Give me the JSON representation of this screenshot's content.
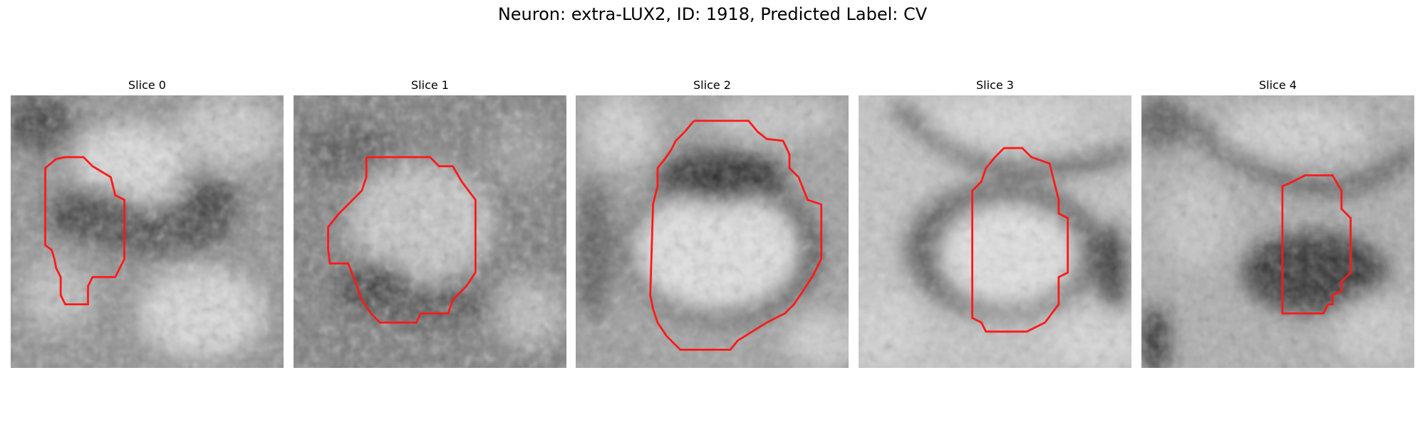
{
  "figure": {
    "title": "Neuron: extra-LUX2, ID: 1918, Predicted Label: CV"
  },
  "outline_color": "#ff1a1a",
  "slices": [
    {
      "title": "Slice 0"
    },
    {
      "title": "Slice 1"
    },
    {
      "title": "Slice 2"
    },
    {
      "title": "Slice 3"
    },
    {
      "title": "Slice 4"
    }
  ]
}
